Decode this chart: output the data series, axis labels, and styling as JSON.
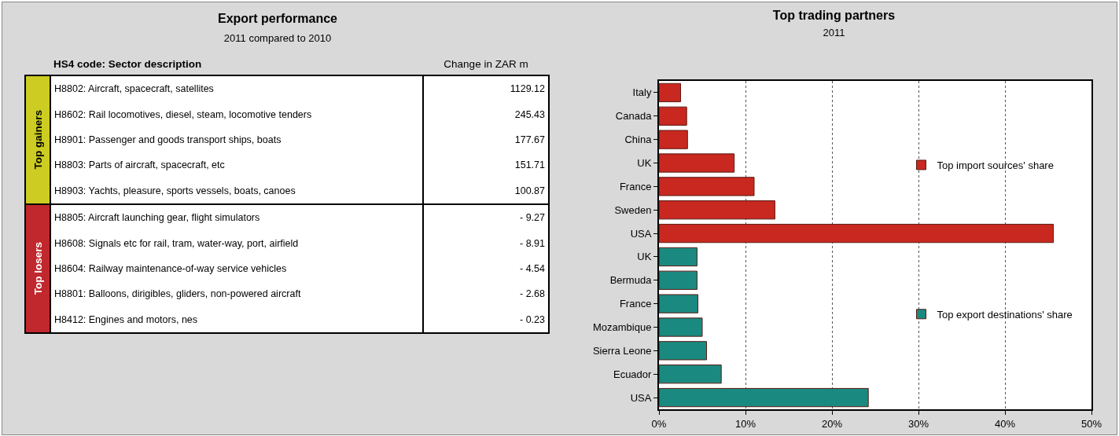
{
  "chart_data": [
    {
      "type": "other",
      "title": "Export performance",
      "subtitle": "2011 compared to 2010",
      "ylabel": "HS4 code: Sector description",
      "xlabel": "Change in ZAR m",
      "categories": [
        "H8802: Aircraft, spacecraft, satellites",
        "H8602: Rail locomotives, diesel, steam, locomotive tenders",
        "H8901: Passenger and goods transport ships, boats",
        "H8803: Parts of aircraft, spacecraft, etc",
        "H8903: Yachts, pleasure, sports vessels, boats, canoes",
        "H8805: Aircraft launching gear, flight simulators",
        "H8608: Signals etc for rail, tram, water-way, port, airfield",
        "H8604: Railway maintenance-of-way service vehicles",
        "H8801: Balloons, dirigibles, gliders, non-powered aircraft",
        "H8412: Engines and motors, nes"
      ],
      "values": [
        1129.12,
        245.43,
        177.67,
        151.71,
        100.87,
        -9.27,
        -8.91,
        -4.54,
        -2.68,
        -0.23
      ],
      "value_labels": [
        "1129.12",
        "245.43",
        "177.67",
        "151.71",
        "100.87",
        "- 9.27",
        "- 8.91",
        "- 4.54",
        "- 2.68",
        "- 0.23"
      ],
      "annotations": [
        "Top gainers",
        "Top losers"
      ]
    },
    {
      "type": "bar",
      "orientation": "horizontal",
      "title": "Top trading partners",
      "subtitle": "2011",
      "categories": [
        "Italy",
        "Canada",
        "China",
        "UK",
        "France",
        "Sweden",
        "USA",
        "UK",
        "Bermuda",
        "France",
        "Mozambique",
        "Sierra Leone",
        "Ecuador",
        "USA"
      ],
      "series": [
        {
          "name": "Top import sources' share",
          "color": "#c8281f",
          "values": [
            2.5,
            3.2,
            3.3,
            8.7,
            11.0,
            13.4,
            45.6,
            null,
            null,
            null,
            null,
            null,
            null,
            null
          ]
        },
        {
          "name": "Top export destinations' share",
          "color": "#1a8a80",
          "values": [
            null,
            null,
            null,
            null,
            null,
            null,
            null,
            4.4,
            4.4,
            4.5,
            5.0,
            5.5,
            7.2,
            24.2
          ]
        }
      ],
      "xlim": [
        0,
        50
      ],
      "xticks": [
        {
          "value": 0,
          "label": "0%"
        },
        {
          "value": 10,
          "label": "10%"
        },
        {
          "value": 20,
          "label": "20%"
        },
        {
          "value": 30,
          "label": "30%"
        },
        {
          "value": 40,
          "label": "40%"
        },
        {
          "value": 50,
          "label": "50%"
        }
      ],
      "grid": "x",
      "legend": "right"
    }
  ]
}
